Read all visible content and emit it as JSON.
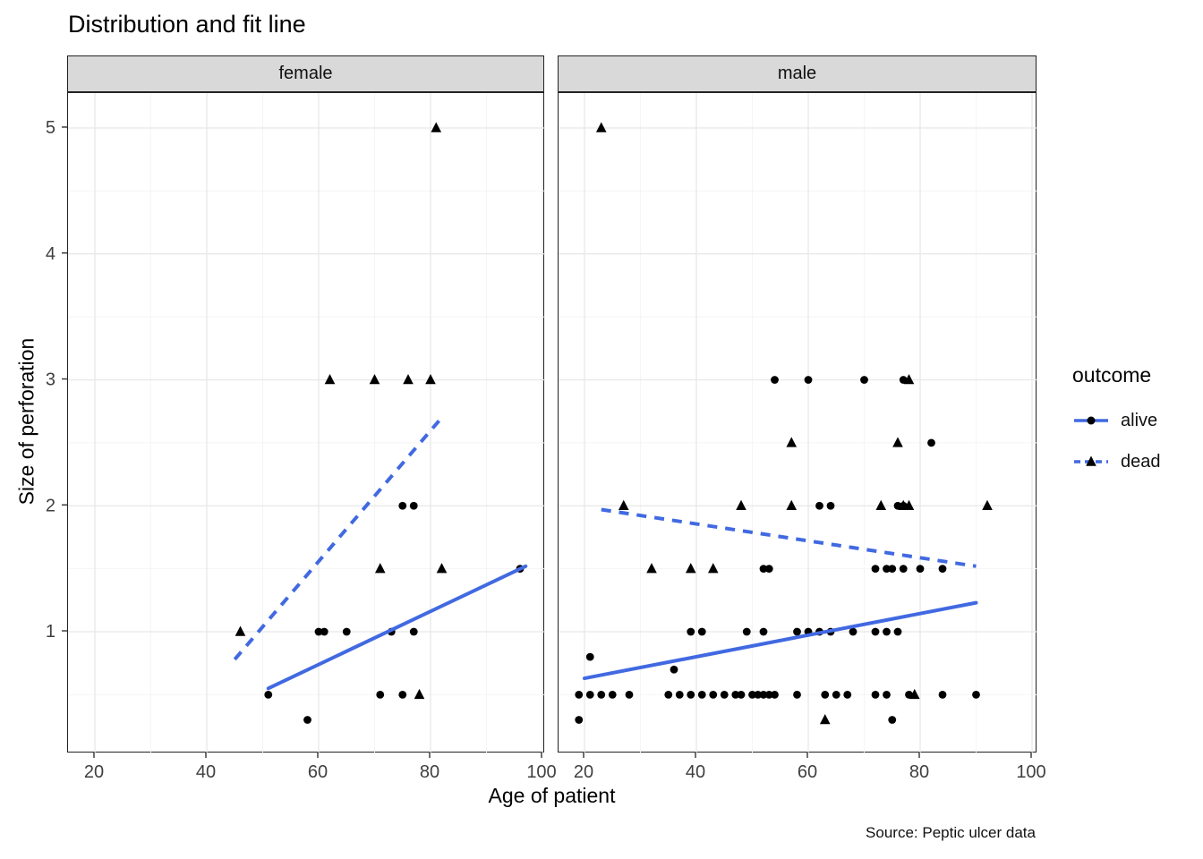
{
  "chart_data": {
    "type": "scatter",
    "title": "Distribution and fit line",
    "xlabel": "Age of patient",
    "ylabel": "Size of perforation",
    "caption": "Source: Peptic ulcer data",
    "x_ticks": [
      20,
      40,
      60,
      80,
      100
    ],
    "y_ticks": [
      1,
      2,
      3,
      4,
      5
    ],
    "x_domain": [
      15,
      100.5
    ],
    "y_domain": [
      0.05,
      5.25
    ],
    "grid": true,
    "line_color": "#4169E1",
    "point_color": "#000000",
    "strip_color": "#D9D9D9",
    "legend": {
      "title": "outcome",
      "position": "right",
      "entries": [
        {
          "label": "alive",
          "marker": "circle",
          "line": "solid"
        },
        {
          "label": "dead",
          "marker": "triangle",
          "line": "dashed"
        }
      ]
    },
    "facets": [
      {
        "label": "female",
        "alive_points": [
          [
            60,
            1
          ],
          [
            61,
            1
          ],
          [
            65,
            1
          ],
          [
            73,
            1
          ],
          [
            77,
            1
          ],
          [
            75,
            2
          ],
          [
            77,
            2
          ],
          [
            96,
            1.5
          ],
          [
            51,
            0.5
          ],
          [
            71,
            0.5
          ],
          [
            75,
            0.5
          ],
          [
            58,
            0.3
          ]
        ],
        "dead_points": [
          [
            81,
            5
          ],
          [
            62,
            3
          ],
          [
            70,
            3
          ],
          [
            76,
            3
          ],
          [
            80,
            3
          ],
          [
            71,
            1.5
          ],
          [
            82,
            1.5
          ],
          [
            46,
            1
          ],
          [
            78,
            0.5
          ]
        ],
        "alive_line": [
          [
            51,
            0.55
          ],
          [
            97,
            1.52
          ]
        ],
        "dead_line": [
          [
            45,
            0.78
          ],
          [
            82,
            2.7
          ]
        ]
      },
      {
        "label": "male",
        "alive_points": [
          [
            54,
            3
          ],
          [
            60,
            3
          ],
          [
            70,
            3
          ],
          [
            77,
            3
          ],
          [
            82,
            2.5
          ],
          [
            62,
            2
          ],
          [
            64,
            2
          ],
          [
            76,
            2
          ],
          [
            77,
            2
          ],
          [
            52,
            1.5
          ],
          [
            53,
            1.5
          ],
          [
            72,
            1.5
          ],
          [
            74,
            1.5
          ],
          [
            75,
            1.5
          ],
          [
            77,
            1.5
          ],
          [
            80,
            1.5
          ],
          [
            84,
            1.5
          ],
          [
            39,
            1
          ],
          [
            41,
            1
          ],
          [
            49,
            1
          ],
          [
            52,
            1
          ],
          [
            58,
            1
          ],
          [
            60,
            1
          ],
          [
            62,
            1
          ],
          [
            64,
            1
          ],
          [
            68,
            1
          ],
          [
            72,
            1
          ],
          [
            74,
            1
          ],
          [
            76,
            1
          ],
          [
            21,
            0.8
          ],
          [
            36,
            0.7
          ],
          [
            19,
            0.5
          ],
          [
            21,
            0.5
          ],
          [
            23,
            0.5
          ],
          [
            25,
            0.5
          ],
          [
            28,
            0.5
          ],
          [
            35,
            0.5
          ],
          [
            37,
            0.5
          ],
          [
            39,
            0.5
          ],
          [
            41,
            0.5
          ],
          [
            43,
            0.5
          ],
          [
            45,
            0.5
          ],
          [
            47,
            0.5
          ],
          [
            48,
            0.5
          ],
          [
            50,
            0.5
          ],
          [
            51,
            0.5
          ],
          [
            52,
            0.5
          ],
          [
            53,
            0.5
          ],
          [
            54,
            0.5
          ],
          [
            58,
            0.5
          ],
          [
            63,
            0.5
          ],
          [
            65,
            0.5
          ],
          [
            67,
            0.5
          ],
          [
            72,
            0.5
          ],
          [
            74,
            0.5
          ],
          [
            78,
            0.5
          ],
          [
            84,
            0.5
          ],
          [
            90,
            0.5
          ],
          [
            19,
            0.3
          ],
          [
            75,
            0.3
          ]
        ],
        "dead_points": [
          [
            23,
            5
          ],
          [
            78,
            3
          ],
          [
            57,
            2.5
          ],
          [
            76,
            2.5
          ],
          [
            27,
            2
          ],
          [
            48,
            2
          ],
          [
            57,
            2
          ],
          [
            73,
            2
          ],
          [
            77,
            2
          ],
          [
            78,
            2
          ],
          [
            92,
            2
          ],
          [
            32,
            1.5
          ],
          [
            39,
            1.5
          ],
          [
            43,
            1.5
          ],
          [
            79,
            0.5
          ],
          [
            63,
            0.3
          ]
        ],
        "alive_line": [
          [
            20,
            0.63
          ],
          [
            90,
            1.23
          ]
        ],
        "dead_line": [
          [
            23,
            1.97
          ],
          [
            90,
            1.52
          ]
        ]
      }
    ]
  }
}
